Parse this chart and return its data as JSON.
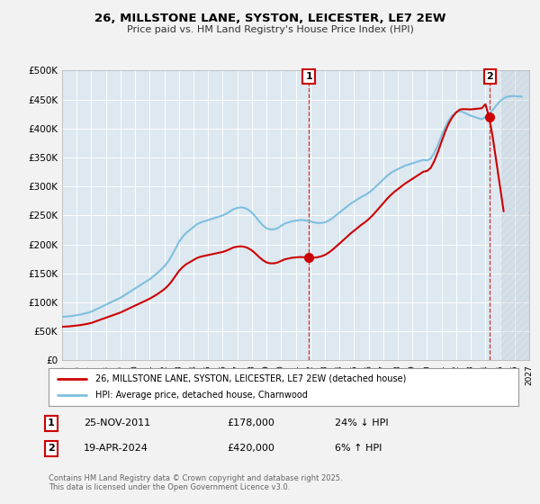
{
  "title": "26, MILLSTONE LANE, SYSTON, LEICESTER, LE7 2EW",
  "subtitle": "Price paid vs. HM Land Registry's House Price Index (HPI)",
  "ylabel_ticks": [
    "£0",
    "£50K",
    "£100K",
    "£150K",
    "£200K",
    "£250K",
    "£300K",
    "£350K",
    "£400K",
    "£450K",
    "£500K"
  ],
  "ytick_values": [
    0,
    50000,
    100000,
    150000,
    200000,
    250000,
    300000,
    350000,
    400000,
    450000,
    500000
  ],
  "ylim": [
    0,
    500000
  ],
  "xlim_start": 1995,
  "xlim_end": 2027,
  "hpi_color": "#7fbfdf",
  "price_color": "#cc0000",
  "sale1_date": "25-NOV-2011",
  "sale1_price": 178000,
  "sale1_pct": "24%",
  "sale1_dir": "↓",
  "sale1_year": 2011.9,
  "sale2_date": "19-APR-2024",
  "sale2_price": 420000,
  "sale2_pct": "6%",
  "sale2_dir": "↑",
  "sale2_year": 2024.3,
  "legend_line1": "26, MILLSTONE LANE, SYSTON, LEICESTER, LE7 2EW (detached house)",
  "legend_line2": "HPI: Average price, detached house, Charnwood",
  "footer": "Contains HM Land Registry data © Crown copyright and database right 2025.\nThis data is licensed under the Open Government Licence v3.0.",
  "hatch_start": 2025.0
}
